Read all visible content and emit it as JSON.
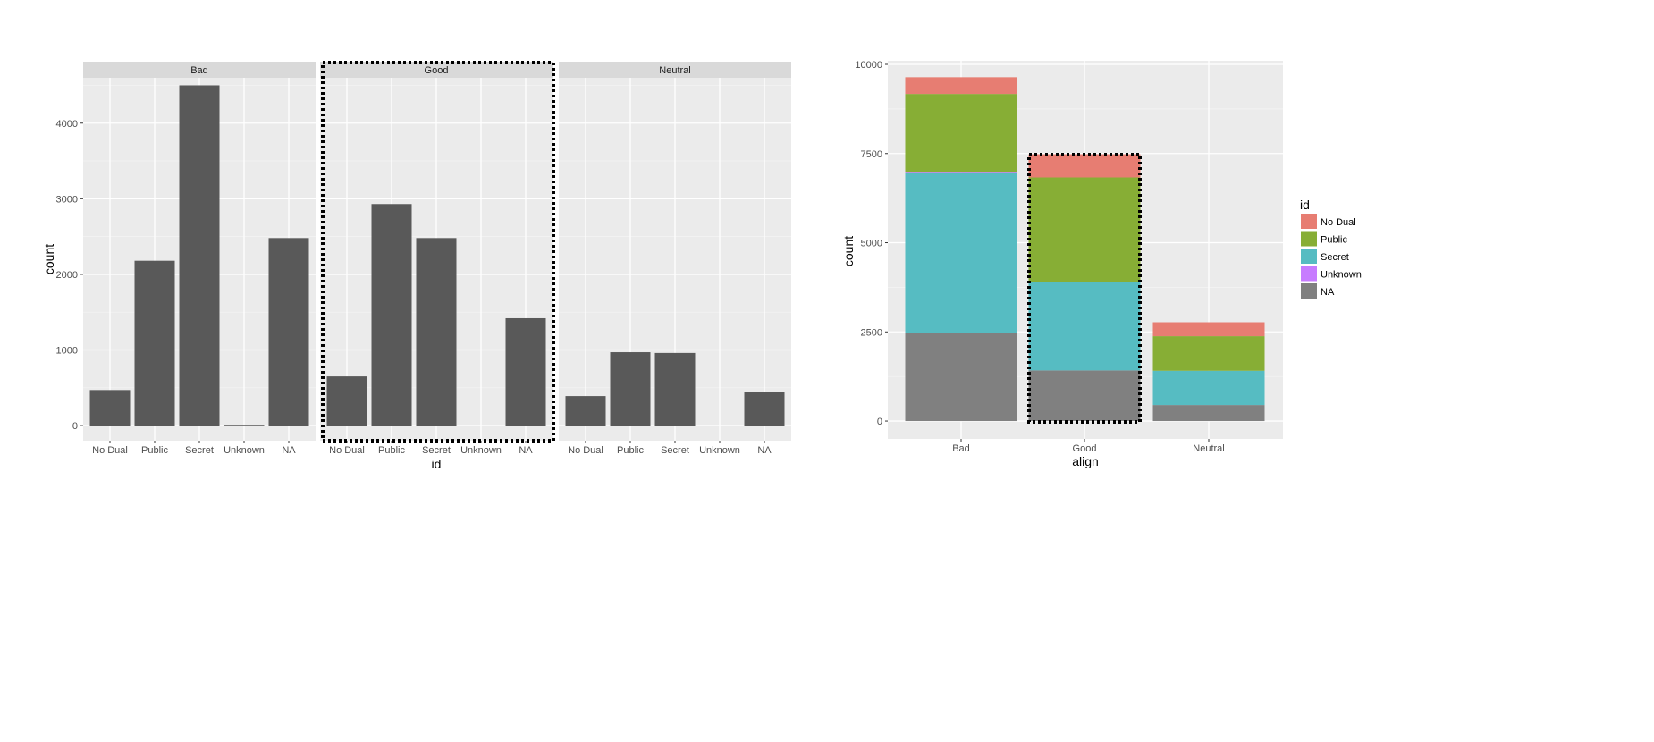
{
  "chart_data": [
    {
      "type": "bar",
      "facet_by": "align",
      "facets": [
        "Bad",
        "Good",
        "Neutral"
      ],
      "categories": [
        "No Dual",
        "Public",
        "Secret",
        "Unknown",
        "NA"
      ],
      "series": [
        {
          "facet": "Bad",
          "values": [
            470,
            2180,
            4500,
            10,
            2480
          ]
        },
        {
          "facet": "Good",
          "values": [
            650,
            2930,
            2480,
            0,
            1420
          ]
        },
        {
          "facet": "Neutral",
          "values": [
            390,
            970,
            960,
            0,
            450
          ]
        }
      ],
      "xlabel": "id",
      "ylabel": "count",
      "ylim": [
        -200,
        4600
      ],
      "y_ticks": [
        0,
        1000,
        2000,
        3000,
        4000
      ],
      "highlight": "Good",
      "bar_color": "#595959",
      "grid": true
    },
    {
      "type": "bar",
      "stacked": true,
      "categories": [
        "Bad",
        "Good",
        "Neutral"
      ],
      "series": [
        {
          "name": "NA",
          "color": "#808080",
          "values": [
            2480,
            1420,
            450
          ]
        },
        {
          "name": "Secret",
          "color": "#56BCC2",
          "values": [
            4500,
            2480,
            960
          ]
        },
        {
          "name": "Unknown",
          "color": "#C77CFF",
          "values": [
            10,
            0,
            0
          ]
        },
        {
          "name": "Public",
          "color": "#87AE35",
          "values": [
            2180,
            2930,
            970
          ]
        },
        {
          "name": "No Dual",
          "color": "#E77D72",
          "values": [
            470,
            650,
            390
          ]
        }
      ],
      "xlabel": "align",
      "ylabel": "count",
      "ylim": [
        -500,
        10100
      ],
      "y_ticks": [
        0,
        2500,
        5000,
        7500,
        10000
      ],
      "legend": {
        "title": "id",
        "position": "right",
        "order": [
          "No Dual",
          "Public",
          "Secret",
          "Unknown",
          "NA"
        ]
      },
      "highlight": "Good",
      "grid": true
    }
  ]
}
